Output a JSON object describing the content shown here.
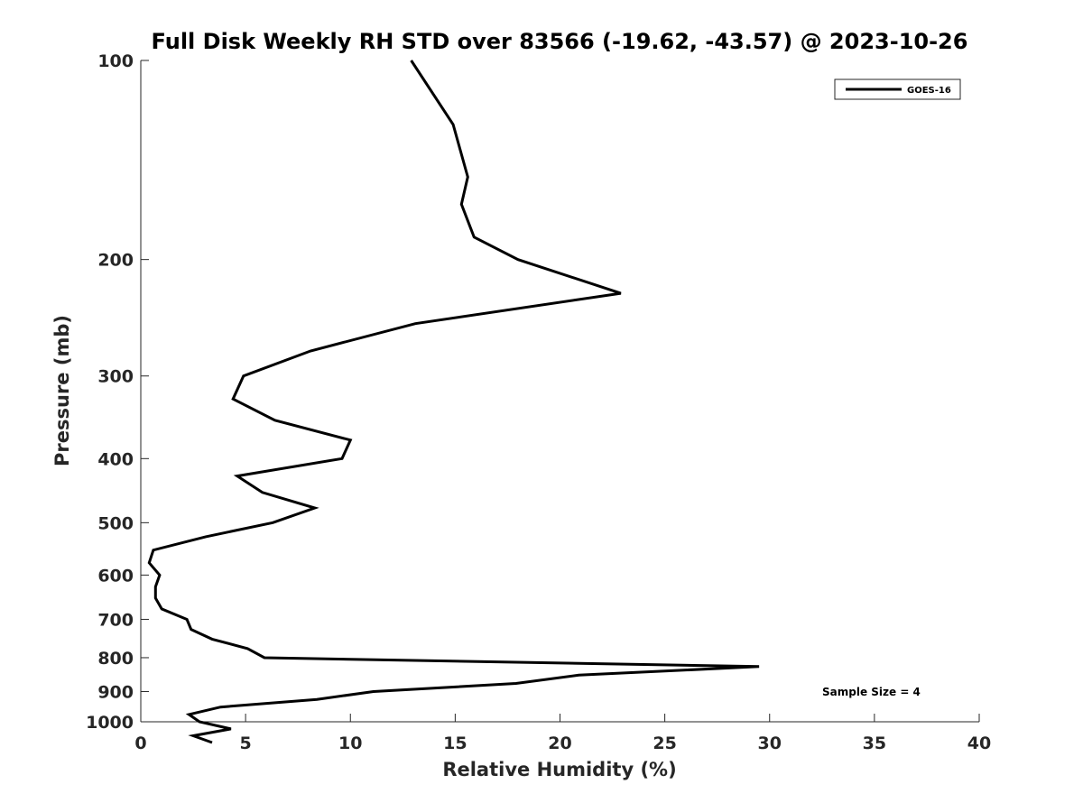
{
  "chart_data": {
    "type": "line",
    "title": "Full Disk Weekly RH STD over 83566 (-19.62, -43.57) @ 2023-10-26",
    "xlabel": "Relative Humidity (%)",
    "ylabel": "Pressure (mb)",
    "xlim": [
      0,
      40
    ],
    "ylim": [
      100,
      1000
    ],
    "yscale": "log",
    "y_reversed": true,
    "grid": false,
    "x_ticks": [
      0,
      5,
      10,
      15,
      20,
      25,
      30,
      35,
      40
    ],
    "y_ticks": [
      100,
      200,
      300,
      400,
      500,
      600,
      700,
      800,
      900,
      1000
    ],
    "legend": {
      "placement": "top-right",
      "entries": [
        "GOES-16"
      ]
    },
    "annotation": "Sample Size = 4",
    "series": [
      {
        "name": "GOES-16",
        "color": "#000000",
        "x": [
          12.9,
          14.9,
          15.6,
          15.3,
          15.9,
          18.0,
          22.9,
          13.1,
          8.1,
          4.9,
          4.4,
          6.4,
          10.0,
          9.6,
          4.6,
          5.8,
          8.3,
          6.3,
          3.1,
          0.6,
          0.4,
          0.9,
          0.7,
          0.7,
          1.0,
          2.2,
          2.4,
          3.4,
          5.1,
          5.9,
          29.5,
          20.9,
          17.9,
          11.1,
          8.4,
          3.8,
          2.3,
          2.8,
          4.3,
          2.5,
          3.4
        ],
        "y": [
          100,
          125,
          150,
          165,
          185,
          200,
          225,
          250,
          275,
          300,
          325,
          350,
          375,
          400,
          425,
          450,
          475,
          500,
          525,
          550,
          575,
          600,
          625,
          650,
          675,
          700,
          725,
          750,
          775,
          800,
          825,
          850,
          875,
          900,
          925,
          950,
          975,
          1000,
          1025,
          1050,
          1075
        ]
      }
    ]
  }
}
